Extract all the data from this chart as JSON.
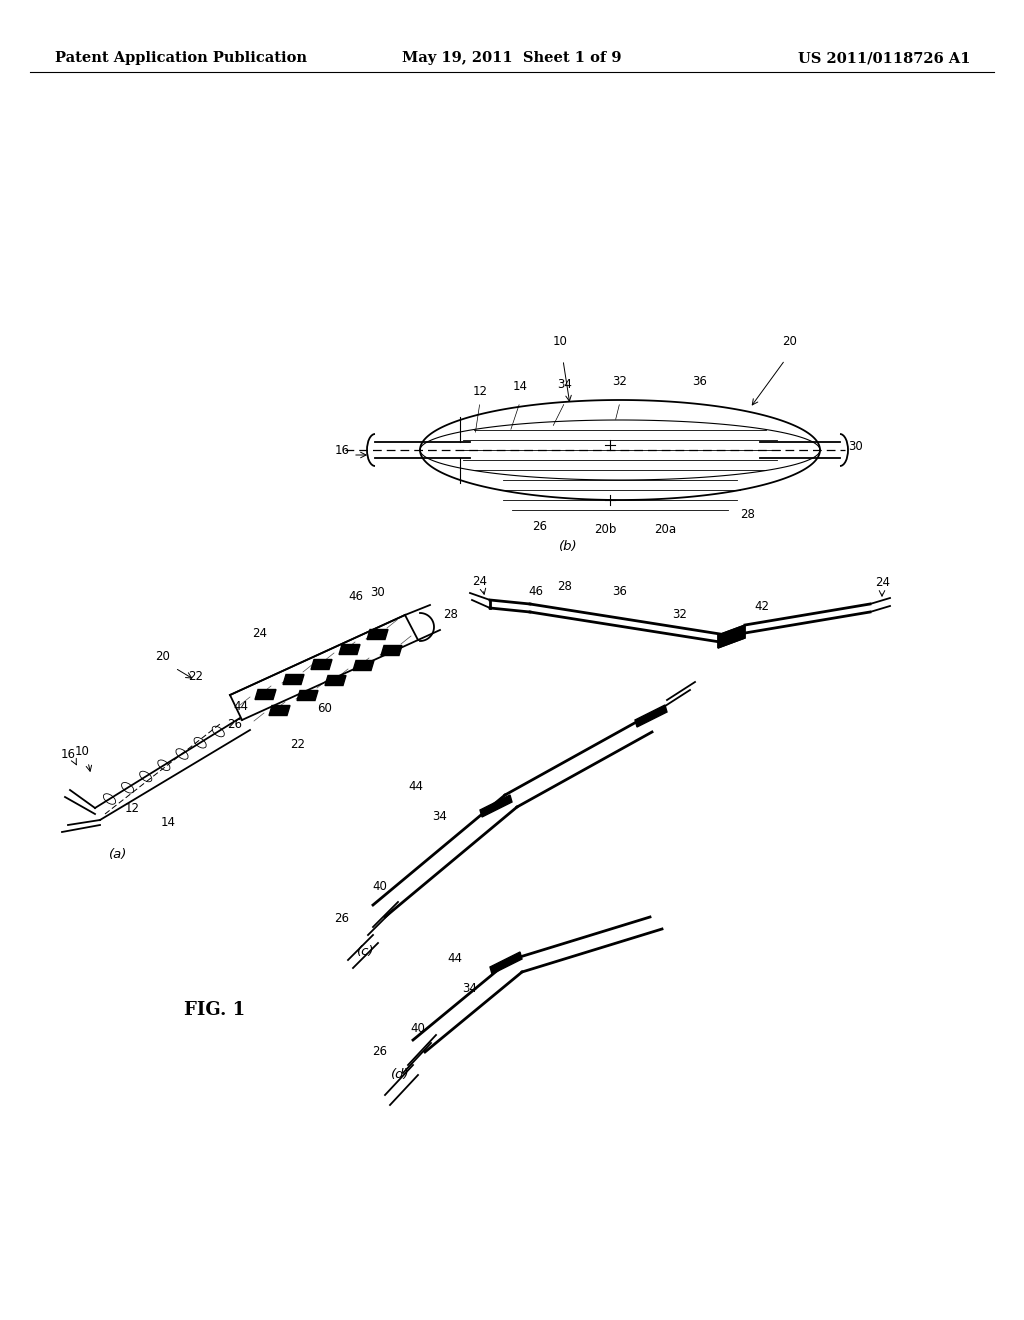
{
  "bg_color": "#ffffff",
  "header_left": "Patent Application Publication",
  "header_center": "May 19, 2011  Sheet 1 of 9",
  "header_right": "US 2011/0118726 A1",
  "fig_label": "FIG. 1",
  "label_fs": 8.5
}
